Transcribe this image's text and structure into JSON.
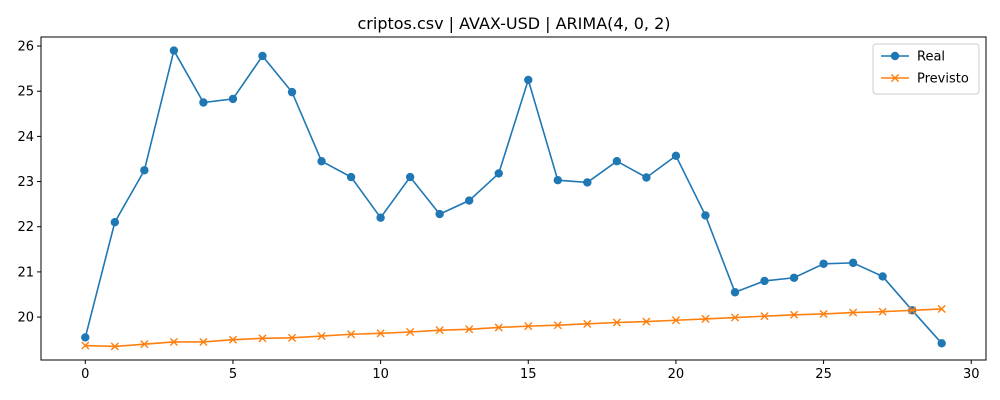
{
  "chart_data": {
    "type": "line",
    "title": "criptos.csv | AVAX-USD | ARIMA(4, 0, 2)",
    "xlabel": "",
    "ylabel": "",
    "xlim": [
      -1.5,
      30.5
    ],
    "ylim": [
      19.05,
      26.2
    ],
    "xticks": [
      0,
      5,
      10,
      15,
      20,
      25,
      30
    ],
    "yticks": [
      20,
      21,
      22,
      23,
      24,
      25,
      26
    ],
    "grid": false,
    "legend_position": "top-right",
    "x": [
      0,
      1,
      2,
      3,
      4,
      5,
      6,
      7,
      8,
      9,
      10,
      11,
      12,
      13,
      14,
      15,
      16,
      17,
      18,
      19,
      20,
      21,
      22,
      23,
      24,
      25,
      26,
      27,
      28,
      29
    ],
    "series": [
      {
        "name": "Real",
        "color": "#1f77b4",
        "marker": "circle",
        "values": [
          19.55,
          22.1,
          23.25,
          25.9,
          24.75,
          24.83,
          25.78,
          24.98,
          23.45,
          23.1,
          22.2,
          23.1,
          22.28,
          22.58,
          23.18,
          25.25,
          23.03,
          22.98,
          23.45,
          23.09,
          23.57,
          22.25,
          20.55,
          20.8,
          20.87,
          21.18,
          21.2,
          20.9,
          20.15,
          19.42
        ]
      },
      {
        "name": "Previsto",
        "color": "#ff7f0e",
        "marker": "x",
        "values": [
          19.37,
          19.35,
          19.4,
          19.45,
          19.45,
          19.5,
          19.53,
          19.54,
          19.58,
          19.62,
          19.64,
          19.67,
          19.71,
          19.73,
          19.77,
          19.8,
          19.82,
          19.85,
          19.88,
          19.9,
          19.93,
          19.96,
          19.99,
          20.02,
          20.05,
          20.07,
          20.1,
          20.12,
          20.15,
          20.18
        ]
      }
    ]
  }
}
